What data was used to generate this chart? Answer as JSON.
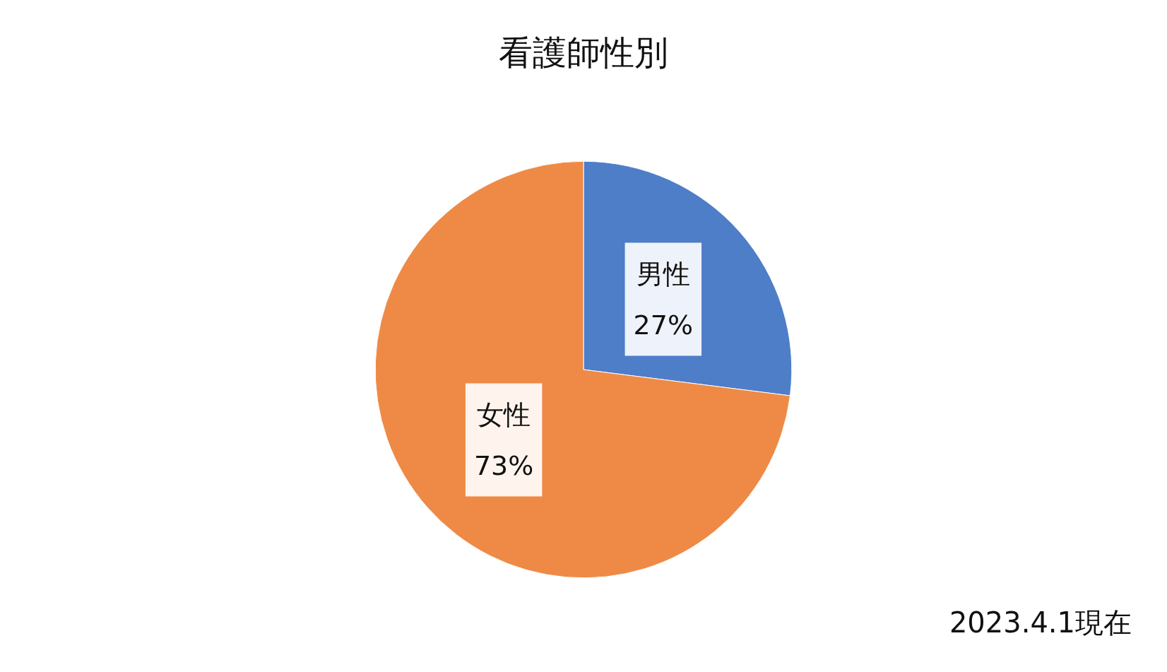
{
  "chart_data": {
    "type": "pie",
    "title": "看護師性別",
    "categories": [
      "男性",
      "女性"
    ],
    "values": [
      27,
      73
    ],
    "value_labels": [
      "27%",
      "73%"
    ],
    "colors": [
      "#4f7ec8",
      "#ee8a45"
    ],
    "annotations": [
      "2023.4.1現在"
    ],
    "legend": false
  }
}
